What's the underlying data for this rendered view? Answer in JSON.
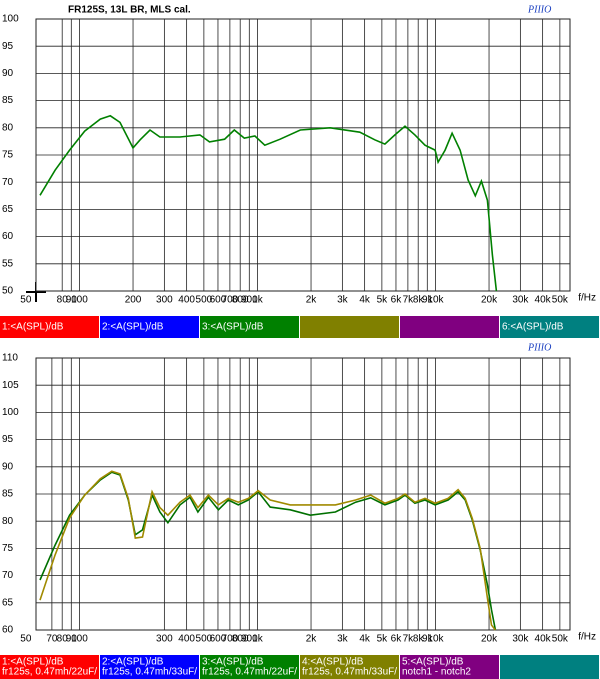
{
  "chart_data": [
    {
      "type": "line",
      "title": "FR125S, 13L BR, MLS cal.",
      "logo": "PIIIO",
      "x_label": "f/Hz",
      "log_x": true,
      "grid": true,
      "xlim": [
        57,
        57000
      ],
      "ylim": [
        50,
        100
      ],
      "yticks": [
        50,
        55,
        60,
        65,
        70,
        75,
        80,
        85,
        90,
        95,
        100
      ],
      "xticks": [
        50,
        80,
        90,
        100,
        200,
        300,
        400,
        500,
        600,
        700,
        800,
        900,
        {
          "value": 1000,
          "label": "1k"
        },
        {
          "value": 2000,
          "label": "2k"
        },
        {
          "value": 3000,
          "label": "3k"
        },
        {
          "value": 4000,
          "label": "4k"
        },
        {
          "value": 5000,
          "label": "5k"
        },
        {
          "value": 6000,
          "label": "6k"
        },
        {
          "value": 7000,
          "label": "7k"
        },
        {
          "value": 8000,
          "label": "8k"
        },
        {
          "value": 9000,
          "label": "9k"
        },
        {
          "value": 10000,
          "label": "10k"
        },
        {
          "value": 20000,
          "label": "20k"
        },
        {
          "value": 30000,
          "label": "30k"
        },
        {
          "value": 40000,
          "label": "40k"
        },
        {
          "value": 50000,
          "label": "50k"
        }
      ],
      "x": [
        60,
        73,
        88,
        107,
        131,
        149,
        169,
        200,
        219,
        249,
        283,
        367,
        475,
        538,
        654,
        741,
        843,
        968,
        1100,
        1340,
        1740,
        2560,
        3760,
        4560,
        5200,
        5920,
        6740,
        7670,
        8740,
        9960,
        10350,
        11330,
        12400,
        13760,
        15260,
        16740,
        18130,
        19590,
        20890,
        22000
      ],
      "series": [
        {
          "color": "#008000",
          "values": [
            67.6,
            72.2,
            75.9,
            79.4,
            81.6,
            82.2,
            81,
            76.3,
            77.8,
            79.6,
            78.3,
            78.3,
            78.7,
            77.4,
            77.9,
            79.6,
            78.1,
            78.5,
            76.8,
            77.9,
            79.6,
            80,
            79.2,
            77.8,
            77,
            78.7,
            80.3,
            78.7,
            76.8,
            75.9,
            73.7,
            75.9,
            79,
            75.9,
            70.4,
            67.5,
            70.2,
            66.7,
            56.6,
            50
          ]
        }
      ],
      "channels": [
        {
          "name": "1:<A(SPL)/dB",
          "color": "#ff0000"
        },
        {
          "name": "2:<A(SPL)/dB",
          "color": "#0000ff"
        },
        {
          "name": "3:<A(SPL)/dB",
          "color": "#008000"
        },
        {
          "color": "#808000"
        },
        {
          "color": "#800080"
        },
        {
          "name": "6:<A(SPL)/dB",
          "color": "#008080"
        }
      ]
    },
    {
      "type": "line",
      "logo": "PIIIO",
      "x_label": "f/Hz",
      "log_x": true,
      "grid": true,
      "xlim": [
        57,
        57000
      ],
      "ylim": [
        60,
        110
      ],
      "yticks": [
        60,
        65,
        70,
        75,
        80,
        85,
        90,
        95,
        100,
        105,
        110
      ],
      "xticks": [
        50,
        70,
        80,
        90,
        100,
        300,
        400,
        500,
        600,
        700,
        800,
        900,
        {
          "value": 1000,
          "label": "1k"
        },
        {
          "value": 2000,
          "label": "2k"
        },
        {
          "value": 3000,
          "label": "3k"
        },
        {
          "value": 4000,
          "label": "4k"
        },
        {
          "value": 5000,
          "label": "5k"
        },
        {
          "value": 6000,
          "label": "6k"
        },
        {
          "value": 7000,
          "label": "7k"
        },
        {
          "value": 8000,
          "label": "8k"
        },
        {
          "value": 9000,
          "label": "9k"
        },
        {
          "value": 10000,
          "label": "10k"
        },
        {
          "value": 20000,
          "label": "20k"
        },
        {
          "value": 30000,
          "label": "30k"
        },
        {
          "value": 40000,
          "label": "40k"
        },
        {
          "value": 50000,
          "label": "50k"
        }
      ],
      "x": [
        60,
        73,
        88,
        107,
        131,
        152,
        169,
        188,
        206,
        226,
        256,
        283,
        314,
        367,
        418,
        463,
        530,
        603,
        686,
        781,
        889,
        1010,
        1180,
        1530,
        1980,
        2740,
        3560,
        4330,
        5200,
        6160,
        6740,
        7670,
        8740,
        9960,
        11780,
        13410,
        14700,
        16110,
        17840,
        19590,
        20640,
        21720
      ],
      "series": [
        {
          "color": "#007000",
          "values": [
            69.2,
            75.6,
            81.1,
            84.8,
            87.6,
            89,
            88.5,
            83.9,
            77.5,
            78.4,
            84.8,
            81.7,
            79.7,
            83,
            84.4,
            81.7,
            84.4,
            82.1,
            83.9,
            83,
            83.9,
            85.4,
            82.6,
            82.1,
            81.1,
            81.7,
            83.5,
            84.3,
            83,
            83.9,
            84.8,
            83.3,
            83.9,
            83,
            83.9,
            85.4,
            83.9,
            80.2,
            74.7,
            68.3,
            63.7,
            60
          ]
        },
        {
          "color": "#a08a00",
          "values": [
            65.5,
            73.8,
            80.6,
            84.8,
            87.8,
            89.2,
            88.7,
            84.2,
            76.9,
            77.1,
            85.4,
            82.5,
            81.1,
            83.5,
            84.8,
            82.5,
            84.8,
            83,
            84.2,
            83.5,
            84.2,
            85.6,
            83.9,
            83,
            83,
            83,
            83.9,
            84.8,
            83.3,
            84.2,
            85,
            83.5,
            84.2,
            83.3,
            84.2,
            85.8,
            84.2,
            80.5,
            75,
            65.9,
            60.9,
            60
          ]
        }
      ],
      "channels": [
        {
          "name": "1:<A(SPL)/dB",
          "note": "fr125s, 0.47mh/22uF/",
          "color": "#ff0000"
        },
        {
          "name": "2:<A(SPL)/dB",
          "note": "fr125s, 0.47mh/33uF/",
          "color": "#0000ff"
        },
        {
          "name": "3:<A(SPL)/dB",
          "note": "fr125s, 0.47mh/22uF/",
          "color": "#008000"
        },
        {
          "name": "4:<A(SPL)/dB",
          "note": "fr125s, 0.47mh/33uF/",
          "color": "#808000"
        },
        {
          "name": "5:<A(SPL)/dB",
          "note": "notch1 - notch2",
          "color": "#800080"
        },
        {
          "color": "#008080"
        }
      ]
    }
  ]
}
